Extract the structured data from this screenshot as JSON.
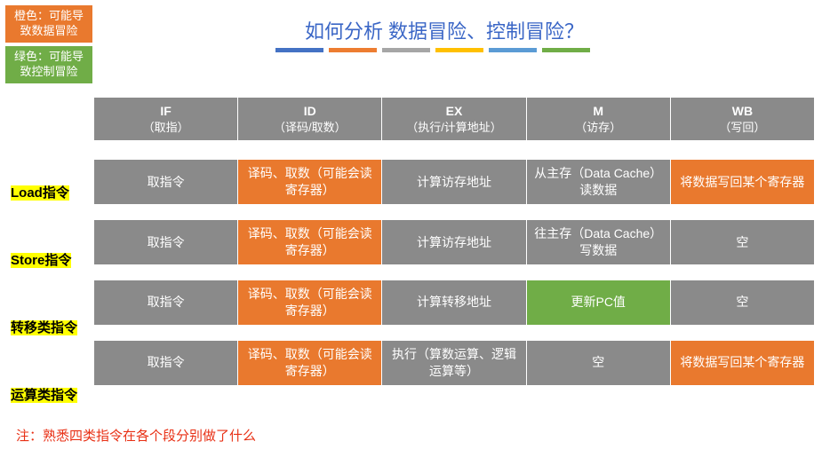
{
  "colors": {
    "orange": "#e9792e",
    "green": "#70ad47",
    "gray": "#8a8a8a",
    "title_blue": "#3a66c6",
    "highlight": "#ffff00",
    "note_red": "#e83015",
    "bar_blue1": "#4472c4",
    "bar_orange": "#ed7d31",
    "bar_gray": "#a6a6a6",
    "bar_yellow": "#ffc000",
    "bar_blue2": "#5b9bd5",
    "bar_green": "#70ad47"
  },
  "legend": {
    "orange_line1": "橙色：可能导",
    "orange_line2": "致数据冒险",
    "green_line1": "绿色：可能导",
    "green_line2": "致控制冒险"
  },
  "title": "如何分析 数据冒险、控制冒险？",
  "header": [
    {
      "top": "IF",
      "bot": "（取指）"
    },
    {
      "top": "ID",
      "bot": "（译码/取数）"
    },
    {
      "top": "EX",
      "bot": "（执行/计算地址）"
    },
    {
      "top": "M",
      "bot": "（访存）"
    },
    {
      "top": "WB",
      "bot": "（写回）"
    }
  ],
  "rows": [
    {
      "label": "Load指令",
      "cells": [
        {
          "text": "取指令",
          "fill": "gray"
        },
        {
          "text": "译码、取数（可能会读寄存器）",
          "fill": "orange"
        },
        {
          "text": "计算访存地址",
          "fill": "gray"
        },
        {
          "text": "从主存（Data Cache）读数据",
          "fill": "gray"
        },
        {
          "text": "将数据写回某个寄存器",
          "fill": "orange"
        }
      ]
    },
    {
      "label": "Store指令",
      "cells": [
        {
          "text": "取指令",
          "fill": "gray"
        },
        {
          "text": "译码、取数（可能会读寄存器）",
          "fill": "orange"
        },
        {
          "text": "计算访存地址",
          "fill": "gray"
        },
        {
          "text": "往主存（Data Cache）写数据",
          "fill": "gray"
        },
        {
          "text": "空",
          "fill": "gray"
        }
      ]
    },
    {
      "label": "转移类指令",
      "cells": [
        {
          "text": "取指令",
          "fill": "gray"
        },
        {
          "text": "译码、取数（可能会读寄存器）",
          "fill": "orange"
        },
        {
          "text": "计算转移地址",
          "fill": "gray"
        },
        {
          "text": "更新PC值",
          "fill": "green"
        },
        {
          "text": "空",
          "fill": "gray"
        }
      ]
    },
    {
      "label": "运算类指令",
      "cells": [
        {
          "text": "取指令",
          "fill": "gray"
        },
        {
          "text": "译码、取数（可能会读寄存器）",
          "fill": "orange"
        },
        {
          "text": "执行（算数运算、逻辑运算等）",
          "fill": "gray"
        },
        {
          "text": "空",
          "fill": "gray"
        },
        {
          "text": "将数据写回某个寄存器",
          "fill": "orange"
        }
      ]
    }
  ],
  "footnote": "注：熟悉四类指令在各个段分别做了什么",
  "layout": {
    "row_tops": [
      204,
      280,
      356,
      432
    ]
  }
}
